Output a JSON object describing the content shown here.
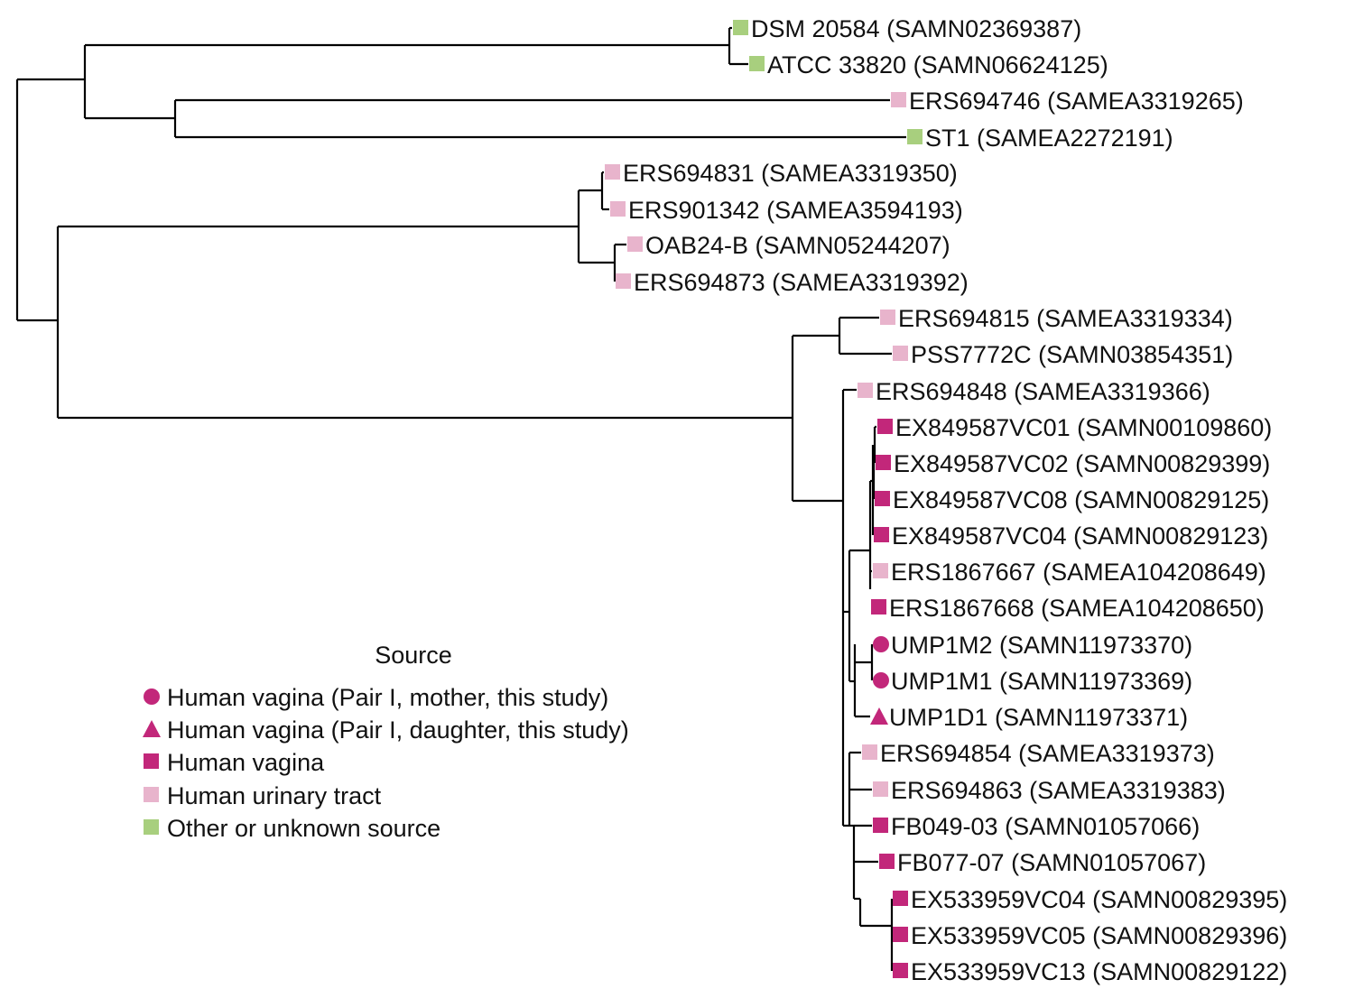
{
  "colors": {
    "human_vagina": "#c2277a",
    "human_urinary_tract": "#e8b4cc",
    "other_unknown": "#a8cf7e"
  },
  "legend": {
    "title": "Source",
    "items": [
      {
        "marker": "circle",
        "color_key": "human_vagina",
        "label": "Human vagina (Pair I, mother, this study)"
      },
      {
        "marker": "triangle",
        "color_key": "human_vagina",
        "label": "Human vagina (Pair I, daughter, this study)"
      },
      {
        "marker": "square",
        "color_key": "human_vagina",
        "label": "Human vagina"
      },
      {
        "marker": "square",
        "color_key": "human_urinary_tract",
        "label": "Human urinary tract"
      },
      {
        "marker": "square",
        "color_key": "other_unknown",
        "label": "Other or unknown source"
      }
    ]
  },
  "leaves": [
    {
      "label": "DSM 20584 (SAMN02369387)",
      "marker": "square",
      "color_key": "other_unknown"
    },
    {
      "label": "ATCC 33820 (SAMN06624125)",
      "marker": "square",
      "color_key": "other_unknown"
    },
    {
      "label": "ERS694746 (SAMEA3319265)",
      "marker": "square",
      "color_key": "human_urinary_tract"
    },
    {
      "label": "ST1 (SAMEA2272191)",
      "marker": "square",
      "color_key": "other_unknown"
    },
    {
      "label": "ERS694831 (SAMEA3319350)",
      "marker": "square",
      "color_key": "human_urinary_tract"
    },
    {
      "label": "ERS901342 (SAMEA3594193)",
      "marker": "square",
      "color_key": "human_urinary_tract"
    },
    {
      "label": "OAB24-B (SAMN05244207)",
      "marker": "square",
      "color_key": "human_urinary_tract"
    },
    {
      "label": "ERS694873 (SAMEA3319392)",
      "marker": "square",
      "color_key": "human_urinary_tract"
    },
    {
      "label": "ERS694815 (SAMEA3319334)",
      "marker": "square",
      "color_key": "human_urinary_tract"
    },
    {
      "label": "PSS7772C (SAMN03854351)",
      "marker": "square",
      "color_key": "human_urinary_tract"
    },
    {
      "label": "ERS694848 (SAMEA3319366)",
      "marker": "square",
      "color_key": "human_urinary_tract"
    },
    {
      "label": "EX849587VC01 (SAMN00109860)",
      "marker": "square",
      "color_key": "human_vagina"
    },
    {
      "label": "EX849587VC02 (SAMN00829399)",
      "marker": "square",
      "color_key": "human_vagina"
    },
    {
      "label": "EX849587VC08 (SAMN00829125)",
      "marker": "square",
      "color_key": "human_vagina"
    },
    {
      "label": "EX849587VC04 (SAMN00829123)",
      "marker": "square",
      "color_key": "human_vagina"
    },
    {
      "label": "ERS1867667 (SAMEA104208649)",
      "marker": "square",
      "color_key": "human_urinary_tract"
    },
    {
      "label": "ERS1867668 (SAMEA104208650)",
      "marker": "square",
      "color_key": "human_vagina"
    },
    {
      "label": "UMP1M2 (SAMN11973370)",
      "marker": "circle",
      "color_key": "human_vagina"
    },
    {
      "label": "UMP1M1 (SAMN11973369)",
      "marker": "circle",
      "color_key": "human_vagina"
    },
    {
      "label": "UMP1D1 (SAMN11973371)",
      "marker": "triangle",
      "color_key": "human_vagina"
    },
    {
      "label": "ERS694854 (SAMEA3319373)",
      "marker": "square",
      "color_key": "human_urinary_tract"
    },
    {
      "label": "ERS694863 (SAMEA3319383)",
      "marker": "square",
      "color_key": "human_urinary_tract"
    },
    {
      "label": "FB049-03 (SAMN01057066)",
      "marker": "square",
      "color_key": "human_vagina"
    },
    {
      "label": "FB077-07 (SAMN01057067)",
      "marker": "square",
      "color_key": "human_vagina"
    },
    {
      "label": "EX533959VC04 (SAMN00829395)",
      "marker": "square",
      "color_key": "human_vagina"
    },
    {
      "label": "EX533959VC05 (SAMN00829396)",
      "marker": "square",
      "color_key": "human_vagina"
    },
    {
      "label": "EX533959VC13 (SAMN00829122)",
      "marker": "square",
      "color_key": "human_vagina"
    }
  ]
}
